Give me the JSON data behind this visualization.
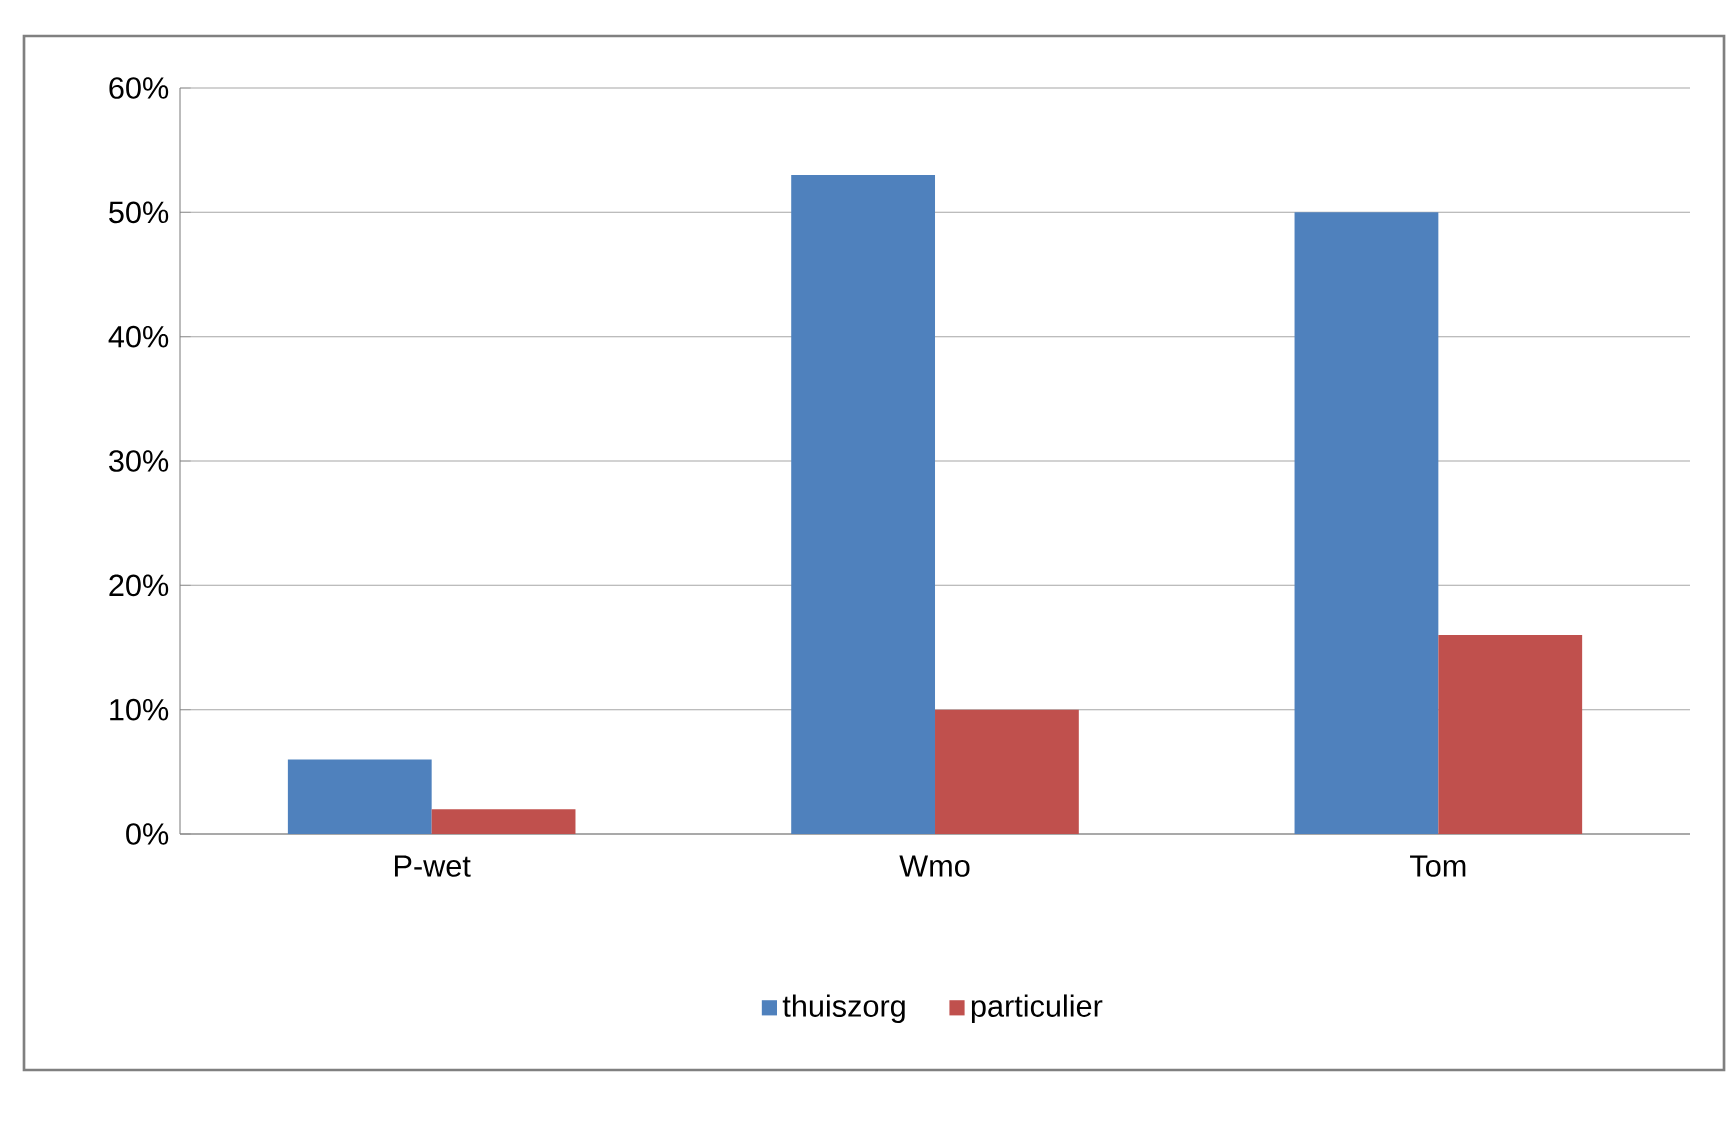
{
  "chart_data": {
    "type": "bar",
    "categories": [
      "P-wet",
      "Wmo",
      "Tom"
    ],
    "series": [
      {
        "name": "thuiszorg",
        "color": "#4f81bd",
        "values": [
          6,
          53,
          50
        ]
      },
      {
        "name": "particulier",
        "color": "#c0504d",
        "values": [
          2,
          10,
          16
        ]
      }
    ],
    "ylim": [
      0,
      60
    ],
    "yticks": [
      {
        "value": 0,
        "label": "0%"
      },
      {
        "value": 10,
        "label": "10%"
      },
      {
        "value": 20,
        "label": "20%"
      },
      {
        "value": 30,
        "label": "30%"
      },
      {
        "value": 40,
        "label": "40%"
      },
      {
        "value": 50,
        "label": "50%"
      },
      {
        "value": 60,
        "label": "60%"
      }
    ],
    "grid": "y",
    "legend": "bottom"
  }
}
